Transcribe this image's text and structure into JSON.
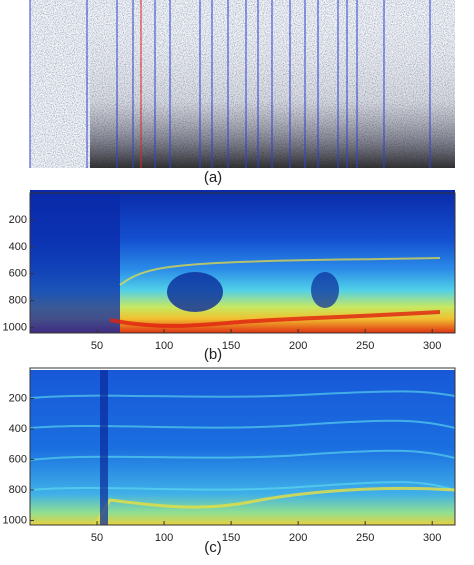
{
  "chart_data": [
    {
      "type": "spectrogram",
      "label": "(a)"
    },
    {
      "type": "heatmap",
      "label": "(b)",
      "xlim": [
        0,
        317
      ],
      "ylim": [
        0,
        1040
      ],
      "xticks": [
        50,
        100,
        150,
        200,
        250,
        300
      ],
      "yticks": [
        200,
        400,
        600,
        800,
        1000
      ]
    },
    {
      "type": "heatmap",
      "label": "(c)",
      "xlim": [
        0,
        317
      ],
      "ylim": [
        0,
        1030
      ],
      "xticks": [
        50,
        100,
        150,
        200,
        250,
        300
      ],
      "yticks": [
        200,
        400,
        600,
        800,
        1000
      ]
    }
  ]
}
